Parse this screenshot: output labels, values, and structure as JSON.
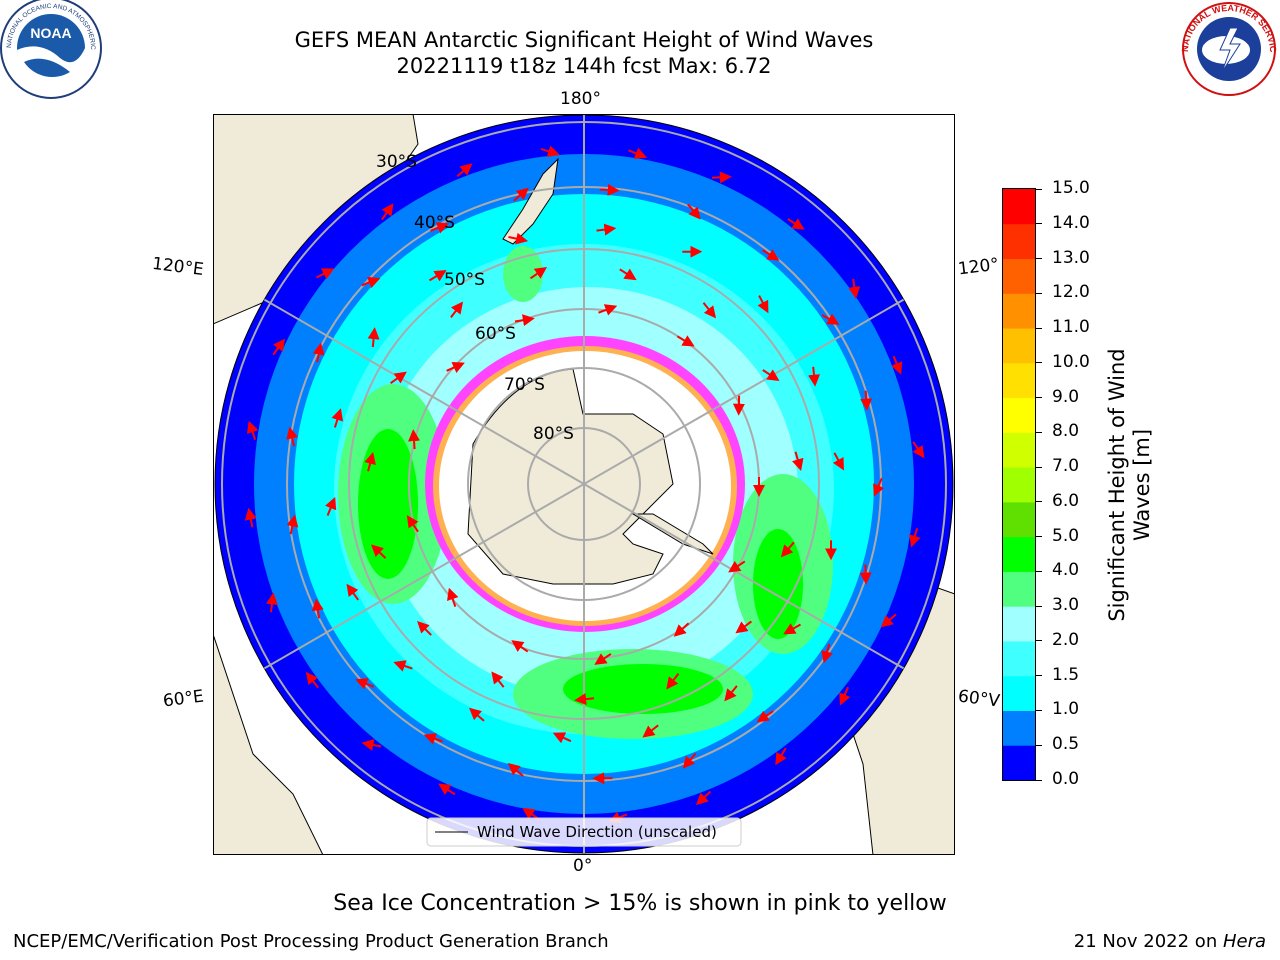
{
  "header": {
    "title_line1": "GEFS MEAN Antarctic Significant Height of Wind Waves",
    "title_line2": "20221119 t18z 144h fcst   Max: 6.72"
  },
  "logos": {
    "left": {
      "name": "NOAA",
      "ring_text": "NATIONAL OCEANIC AND ATMOSPHERIC ADMINISTRATION",
      "bottom_text": "U.S. DEPARTMENT OF COMMERCE"
    },
    "right": {
      "ring_text": "NATIONAL WEATHER SERVICE"
    }
  },
  "map": {
    "longitude_labels": {
      "top": "180°",
      "bottom": "0°",
      "upper_left": "120°E",
      "lower_left": "60°E",
      "upper_right": "120°",
      "lower_right": "60°V"
    },
    "latitude_labels": [
      "30°S",
      "40°S",
      "50°S",
      "60°S",
      "70°S",
      "80°S"
    ],
    "legend": "Wind Wave Direction (unscaled)",
    "colors": {
      "land": "#efebd8",
      "ocean_blue": "#0000ff",
      "ice": "#ff44ff"
    }
  },
  "colorbar": {
    "title_line1": "Significant Height of Wind",
    "title_line2": "Waves [m]",
    "ticks": [
      "0.0",
      "0.5",
      "1.0",
      "1.5",
      "2.0",
      "3.0",
      "4.0",
      "5.0",
      "6.0",
      "7.0",
      "8.0",
      "9.0",
      "10.0",
      "11.0",
      "12.0",
      "13.0",
      "14.0",
      "15.0"
    ],
    "colors": [
      "#0000ff",
      "#0080ff",
      "#00ffff",
      "#40ffff",
      "#a0ffff",
      "#50ff80",
      "#00ff00",
      "#60e000",
      "#a0ff00",
      "#d0ff00",
      "#ffff00",
      "#ffe000",
      "#ffc000",
      "#ff9000",
      "#ff6000",
      "#ff3000",
      "#ff0000"
    ]
  },
  "note": "Sea Ice Concentration > 15% is shown in pink to yellow",
  "footer": {
    "left": "NCEP/EMC/Verification Post Processing Product Generation Branch",
    "right_date": "21 Nov 2022 on ",
    "right_machine": "Hera"
  }
}
